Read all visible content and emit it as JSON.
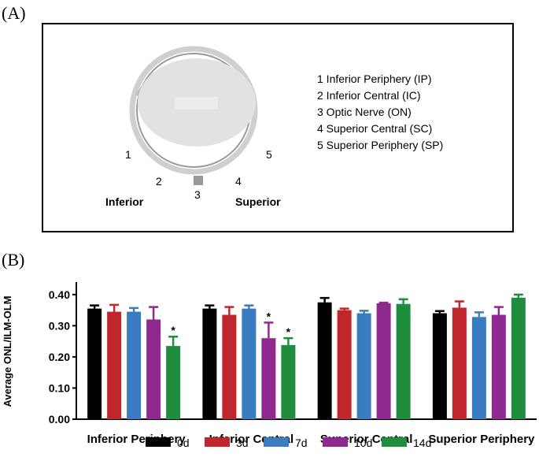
{
  "panel_a": {
    "label": "(A)",
    "regions": [
      "1 Inferior Periphery (IP)",
      "2 Inferior Central (IC)",
      "3 Optic Nerve (ON)",
      "4 Superior Central (SC)",
      "5 Superior Periphery (SP)"
    ],
    "markers": [
      "1",
      "2",
      "3",
      "4",
      "5"
    ],
    "inferior": "Inferior",
    "superior": "Superior"
  },
  "panel_b": {
    "label": "(B)"
  },
  "chart_data": {
    "type": "bar",
    "y_label": "Average ONL/ILM-OLM",
    "categories": [
      "Inferior Periphery",
      "Inferior Central",
      "Superior Central",
      "Superior Periphery"
    ],
    "series": [
      {
        "name": "0d",
        "color": "#000000",
        "values": [
          0.355,
          0.355,
          0.375,
          0.34
        ],
        "errors": [
          0.01,
          0.01,
          0.014,
          0.007
        ],
        "annotations": [
          null,
          null,
          null,
          null
        ]
      },
      {
        "name": "3d",
        "color": "#c0272d",
        "values": [
          0.345,
          0.335,
          0.35,
          0.358
        ],
        "errors": [
          0.022,
          0.025,
          0.005,
          0.02
        ],
        "annotations": [
          null,
          null,
          null,
          null
        ]
      },
      {
        "name": "7d",
        "color": "#3a7cc2",
        "values": [
          0.345,
          0.355,
          0.34,
          0.328
        ],
        "errors": [
          0.012,
          0.01,
          0.008,
          0.015
        ],
        "annotations": [
          null,
          null,
          null,
          null
        ]
      },
      {
        "name": "10d",
        "color": "#8e2a8f",
        "values": [
          0.32,
          0.26,
          0.372,
          0.335
        ],
        "errors": [
          0.04,
          0.05,
          0.002,
          0.025
        ],
        "annotations": [
          null,
          "*",
          null,
          null
        ]
      },
      {
        "name": "14d",
        "color": "#1e8e3e",
        "values": [
          0.235,
          0.238,
          0.37,
          0.39
        ],
        "errors": [
          0.03,
          0.022,
          0.015,
          0.01
        ],
        "annotations": [
          "*",
          "*",
          null,
          null
        ]
      }
    ],
    "ylim": [
      0,
      0.44
    ],
    "yticks": [
      {
        "value": 0,
        "label": "0.00"
      },
      {
        "value": 0.1,
        "label": "0.10"
      },
      {
        "value": 0.2,
        "label": "0.20"
      },
      {
        "value": 0.3,
        "label": "0.30"
      },
      {
        "value": 0.4,
        "label": "0.40"
      }
    ],
    "legend": "bottom"
  }
}
